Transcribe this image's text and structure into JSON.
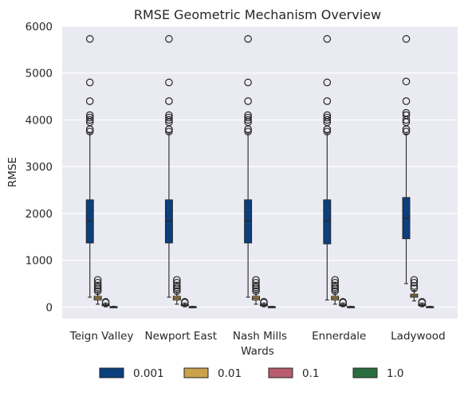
{
  "chart_data": {
    "type": "box",
    "title": "RMSE Geometric Mechanism Overview",
    "xlabel": "Wards",
    "ylabel": "RMSE",
    "ylim": [
      -250,
      6000
    ],
    "yticks": [
      0,
      1000,
      2000,
      3000,
      4000,
      5000,
      6000
    ],
    "grid": true,
    "legend_placement": "bottom-center",
    "background": "#eaeaf2",
    "categories": [
      "Teign Valley",
      "Newport East",
      "Nash Mills",
      "Ennerdale",
      "Ladywood"
    ],
    "series": [
      {
        "name": "0.001",
        "color": "#0b3f7d",
        "boxes": [
          {
            "whislo": 210,
            "q1": 1370,
            "med": 1840,
            "q3": 2290,
            "whishi": 3720,
            "fliers": [
              3750,
              3800,
              3950,
              4000,
              4050,
              4100,
              4400,
              4800,
              5730
            ]
          },
          {
            "whislo": 210,
            "q1": 1370,
            "med": 1840,
            "q3": 2290,
            "whishi": 3720,
            "fliers": [
              3750,
              3800,
              3950,
              4000,
              4050,
              4100,
              4400,
              4800,
              5730
            ]
          },
          {
            "whislo": 210,
            "q1": 1370,
            "med": 1840,
            "q3": 2290,
            "whishi": 3720,
            "fliers": [
              3750,
              3800,
              3950,
              4000,
              4050,
              4100,
              4400,
              4800,
              5730
            ]
          },
          {
            "whislo": 150,
            "q1": 1350,
            "med": 1840,
            "q3": 2290,
            "whishi": 3720,
            "fliers": [
              3750,
              3800,
              3950,
              4000,
              4050,
              4100,
              4400,
              4800,
              5730
            ]
          },
          {
            "whislo": 500,
            "q1": 1460,
            "med": 1900,
            "q3": 2340,
            "whishi": 3700,
            "fliers": [
              3750,
              3800,
              3950,
              4000,
              4100,
              4150,
              4400,
              4820,
              5730
            ]
          }
        ]
      },
      {
        "name": "0.01",
        "color": "#c9a24a",
        "boxes": [
          {
            "whislo": 60,
            "q1": 150,
            "med": 190,
            "q3": 230,
            "whishi": 320,
            "fliers": [
              340,
              380,
              420,
              460,
              520,
              580
            ]
          },
          {
            "whislo": 60,
            "q1": 150,
            "med": 190,
            "q3": 230,
            "whishi": 320,
            "fliers": [
              340,
              380,
              420,
              460,
              520,
              580
            ]
          },
          {
            "whislo": 60,
            "q1": 150,
            "med": 190,
            "q3": 230,
            "whishi": 320,
            "fliers": [
              340,
              380,
              420,
              460,
              520,
              580
            ]
          },
          {
            "whislo": 60,
            "q1": 150,
            "med": 190,
            "q3": 230,
            "whishi": 320,
            "fliers": [
              340,
              380,
              420,
              460,
              520,
              580
            ]
          },
          {
            "whislo": 130,
            "q1": 210,
            "med": 240,
            "q3": 275,
            "whishi": 350,
            "fliers": [
              400,
              450,
              520,
              580
            ]
          }
        ]
      },
      {
        "name": "0.1",
        "color": "#b85c6e",
        "boxes": [
          {
            "whislo": 5,
            "q1": 25,
            "med": 40,
            "q3": 55,
            "whishi": 85,
            "fliers": [
              95,
              110
            ]
          },
          {
            "whislo": 5,
            "q1": 25,
            "med": 40,
            "q3": 55,
            "whishi": 85,
            "fliers": [
              95,
              110
            ]
          },
          {
            "whislo": 5,
            "q1": 25,
            "med": 40,
            "q3": 55,
            "whishi": 85,
            "fliers": [
              95,
              110
            ]
          },
          {
            "whislo": 5,
            "q1": 25,
            "med": 40,
            "q3": 55,
            "whishi": 85,
            "fliers": [
              95,
              110
            ]
          },
          {
            "whislo": 5,
            "q1": 25,
            "med": 40,
            "q3": 55,
            "whishi": 85,
            "fliers": [
              95,
              110
            ]
          }
        ]
      },
      {
        "name": "1.0",
        "color": "#2a6e3f",
        "boxes": [
          {
            "whislo": 0,
            "q1": 2,
            "med": 5,
            "q3": 9,
            "whishi": 15,
            "fliers": []
          },
          {
            "whislo": 0,
            "q1": 2,
            "med": 5,
            "q3": 9,
            "whishi": 15,
            "fliers": []
          },
          {
            "whislo": 0,
            "q1": 2,
            "med": 5,
            "q3": 9,
            "whishi": 15,
            "fliers": []
          },
          {
            "whislo": 0,
            "q1": 2,
            "med": 5,
            "q3": 9,
            "whishi": 15,
            "fliers": []
          },
          {
            "whislo": 0,
            "q1": 2,
            "med": 5,
            "q3": 9,
            "whishi": 15,
            "fliers": []
          }
        ]
      }
    ]
  }
}
